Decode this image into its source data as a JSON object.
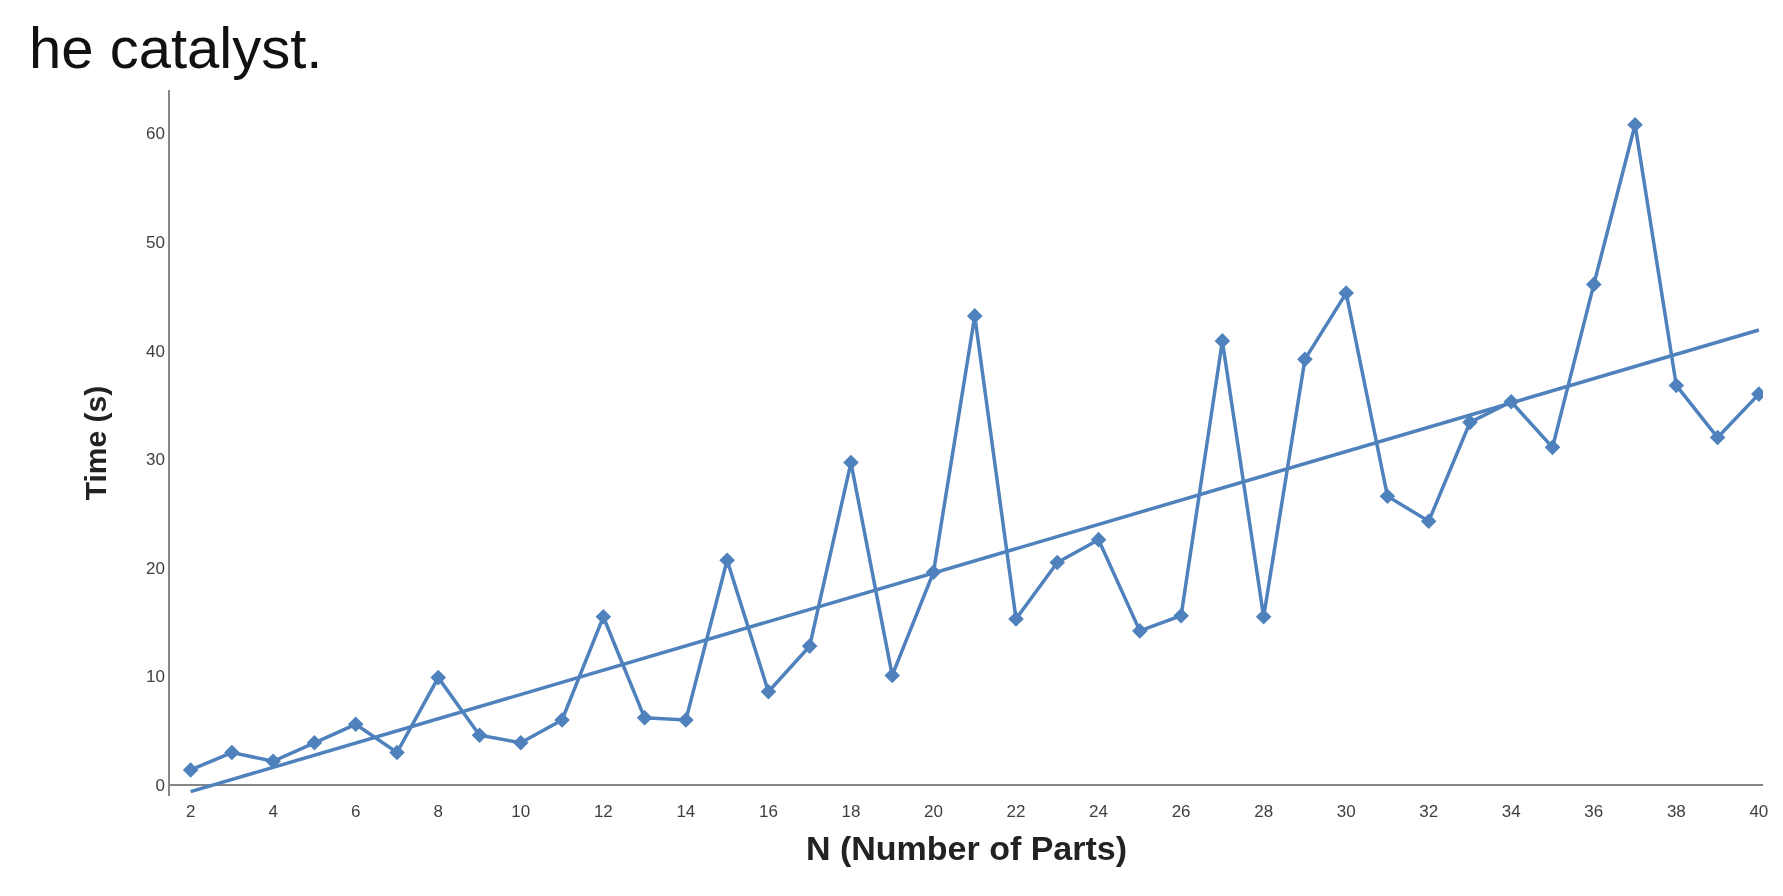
{
  "chart_data": {
    "type": "line",
    "xlabel": "N (Number of Parts)",
    "ylabel": "Time (s)",
    "annotations": [
      "he catalyst."
    ],
    "x": [
      2,
      3,
      4,
      5,
      6,
      7,
      8,
      9,
      10,
      11,
      12,
      13,
      14,
      15,
      16,
      17,
      18,
      19,
      20,
      21,
      22,
      23,
      24,
      25,
      26,
      27,
      28,
      29,
      30,
      31,
      32,
      33,
      34,
      35,
      36,
      37,
      38,
      39,
      40
    ],
    "series": [
      {
        "color": "#4f81bd",
        "marker": "diamond",
        "values": [
          1.4,
          3.0,
          2.2,
          3.9,
          5.6,
          3.0,
          9.9,
          4.6,
          3.9,
          6.0,
          15.5,
          6.2,
          6.0,
          20.7,
          8.6,
          12.8,
          29.7,
          10.1,
          19.6,
          43.2,
          15.3,
          20.5,
          22.6,
          14.2,
          15.6,
          40.9,
          15.5,
          39.2,
          45.3,
          26.6,
          24.3,
          33.4,
          35.3,
          31.1,
          46.1,
          60.8,
          36.8,
          32.0,
          36.0
        ]
      },
      {
        "type": "line",
        "color": "#4f81bd",
        "marker": "none",
        "x": [
          2,
          40
        ],
        "values": [
          -0.6,
          41.9
        ]
      }
    ],
    "xlim": [
      1.5,
      40.1
    ],
    "xticks": [
      2,
      4,
      6,
      8,
      10,
      12,
      14,
      16,
      18,
      20,
      22,
      24,
      26,
      28,
      30,
      32,
      34,
      36,
      38,
      40
    ],
    "ylim": [
      -1,
      64
    ],
    "yticks": [
      0,
      10,
      20,
      30,
      40,
      50,
      60
    ]
  }
}
